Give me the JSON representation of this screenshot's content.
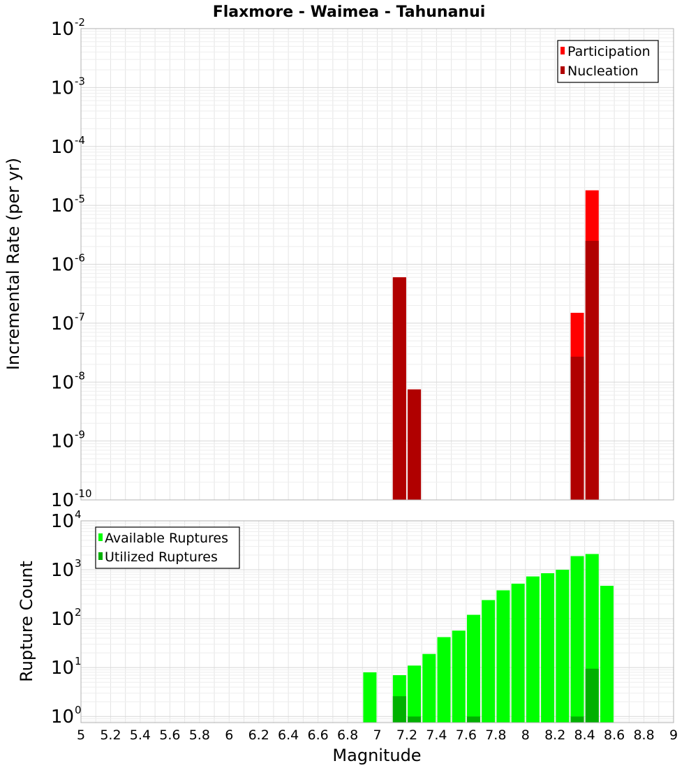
{
  "title": "Flaxmore - Waimea - Tahunanui",
  "colors": {
    "participation": "#ff0000",
    "nucleation": "#b00000",
    "available": "#00ff00",
    "utilized": "#00b000",
    "grid": "#e4e4e4",
    "frame": "#b0b0b0"
  },
  "chart_data": [
    {
      "type": "bar",
      "scale": "log",
      "title": "Flaxmore - Waimea - Tahunanui",
      "ylabel": "Incremental Rate (per yr)",
      "xlabel": "",
      "xlim": [
        5,
        9
      ],
      "ylim": [
        1e-10,
        0.01
      ],
      "y_ticks": [
        {
          "base": "10",
          "exp": "-2",
          "value": 0.01
        },
        {
          "base": "10",
          "exp": "-3",
          "value": 0.001
        },
        {
          "base": "10",
          "exp": "-4",
          "value": 0.0001
        },
        {
          "base": "10",
          "exp": "-5",
          "value": 1e-05
        },
        {
          "base": "10",
          "exp": "-6",
          "value": 1e-06
        },
        {
          "base": "10",
          "exp": "-7",
          "value": 1e-07
        },
        {
          "base": "10",
          "exp": "-8",
          "value": 1e-08
        },
        {
          "base": "10",
          "exp": "-9",
          "value": 1e-09
        },
        {
          "base": "10",
          "exp": "-10",
          "value": 1e-10
        }
      ],
      "legend": {
        "position": "top-right",
        "entries": [
          "Participation",
          "Nucleation"
        ]
      },
      "series": [
        {
          "name": "Participation",
          "x": [
            7.15,
            7.25,
            8.35,
            8.45
          ],
          "values": [
            6e-07,
            7.5e-09,
            1.5e-07,
            1.8e-05
          ]
        },
        {
          "name": "Nucleation",
          "x": [
            7.15,
            7.25,
            8.35,
            8.45
          ],
          "values": [
            6e-07,
            7.5e-09,
            2.7e-08,
            2.5e-06
          ]
        }
      ]
    },
    {
      "type": "bar",
      "scale": "log",
      "title": "",
      "ylabel": "Rupture Count",
      "xlabel": "Magnitude",
      "xlim": [
        5,
        9
      ],
      "ylim": [
        0.75,
        10000
      ],
      "x_ticks": [
        "5",
        "5.2",
        "5.4",
        "5.6",
        "5.8",
        "6",
        "6.2",
        "6.4",
        "6.6",
        "6.8",
        "7",
        "7.2",
        "7.4",
        "7.6",
        "7.8",
        "8",
        "8.2",
        "8.4",
        "8.6",
        "8.8",
        "9"
      ],
      "y_ticks": [
        {
          "base": "10",
          "exp": "4",
          "value": 10000
        },
        {
          "base": "10",
          "exp": "3",
          "value": 1000
        },
        {
          "base": "10",
          "exp": "2",
          "value": 100
        },
        {
          "base": "10",
          "exp": "1",
          "value": 10
        },
        {
          "base": "10",
          "exp": "0",
          "value": 1
        }
      ],
      "legend": {
        "position": "top-left",
        "entries": [
          "Available Ruptures",
          "Utilized Ruptures"
        ]
      },
      "series": [
        {
          "name": "Available Ruptures",
          "x": [
            6.95,
            7.15,
            7.25,
            7.35,
            7.45,
            7.55,
            7.65,
            7.75,
            7.85,
            7.95,
            8.05,
            8.15,
            8.25,
            8.35,
            8.45,
            8.55
          ],
          "values": [
            8,
            7,
            11,
            19,
            42,
            57,
            120,
            240,
            380,
            520,
            730,
            850,
            1000,
            1900,
            2100,
            470
          ]
        },
        {
          "name": "Utilized Ruptures",
          "x": [
            7.15,
            7.25,
            7.65,
            8.35,
            8.45
          ],
          "values": [
            2.6,
            1,
            1,
            1,
            9.5
          ]
        }
      ]
    }
  ]
}
